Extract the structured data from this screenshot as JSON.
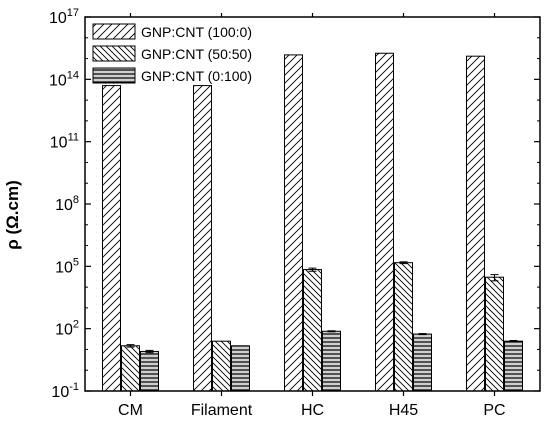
{
  "chart_data": {
    "type": "bar",
    "title": "",
    "xlabel": "",
    "ylabel": "ρ (Ω.cm)",
    "yscale": "log",
    "ylim": [
      0.1,
      1e+17
    ],
    "yticks": [
      {
        "value": 0.1,
        "base": "10",
        "exp": "-1"
      },
      {
        "value": 100,
        "base": "10",
        "exp": "2"
      },
      {
        "value": 100000,
        "base": "10",
        "exp": "5"
      },
      {
        "value": 100000000,
        "base": "10",
        "exp": "8"
      },
      {
        "value": 100000000000,
        "base": "10",
        "exp": "11"
      },
      {
        "value": 100000000000000,
        "base": "10",
        "exp": "14"
      },
      {
        "value": 1e+17,
        "base": "10",
        "exp": "17"
      }
    ],
    "categories": [
      "CM",
      "Filament",
      "HC",
      "H45",
      "PC"
    ],
    "legend_position": "top-left",
    "grid": false,
    "series": [
      {
        "name": "GNP:CNT (100:0)",
        "pattern": "diagonal-forward",
        "values": [
          50000000000000.0,
          50000000000000.0,
          1500000000000000.0,
          1800000000000000.0,
          1300000000000000.0
        ],
        "errors": [
          0,
          0,
          0,
          0,
          0
        ]
      },
      {
        "name": "GNP:CNT (50:50)",
        "pattern": "diagonal-backward",
        "values": [
          15,
          25,
          70000,
          150000,
          30000
        ],
        "errors": [
          2,
          0,
          12000,
          15000,
          10000
        ]
      },
      {
        "name": "GNP:CNT (0:100)",
        "pattern": "horizontal",
        "values": [
          8,
          15,
          75,
          55,
          25
        ],
        "errors": [
          1,
          0,
          4,
          3,
          2
        ]
      }
    ]
  }
}
